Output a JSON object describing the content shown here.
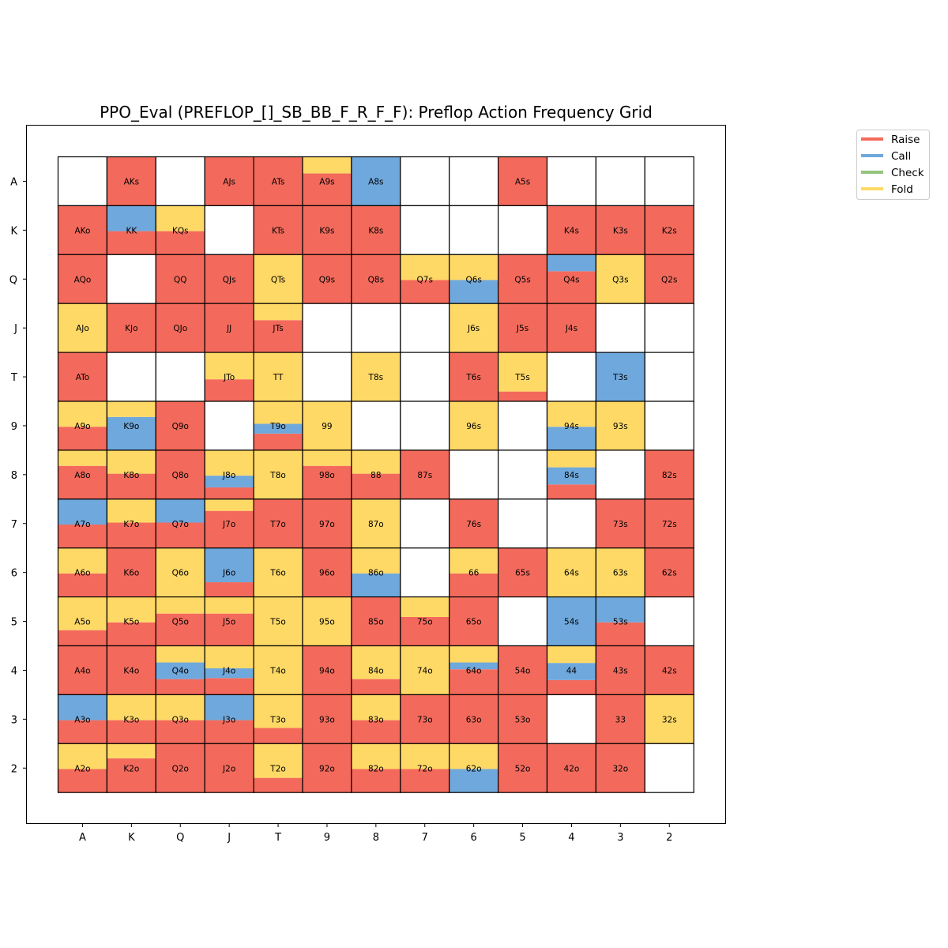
{
  "chart_data": {
    "type": "heatmap",
    "title": "PPO_Eval (PREFLOP_[]_SB_BB_F_R_F_F): Preflop Action Frequency Grid",
    "xlabel": "",
    "ylabel": "",
    "x_ticks": [
      "A",
      "K",
      "Q",
      "J",
      "T",
      "9",
      "8",
      "7",
      "6",
      "5",
      "4",
      "3",
      "2"
    ],
    "y_ticks": [
      "A",
      "K",
      "Q",
      "J",
      "T",
      "9",
      "8",
      "7",
      "6",
      "5",
      "4",
      "3",
      "2"
    ],
    "legend": {
      "placement": "upper right, outside axes",
      "entries": [
        {
          "label": "Raise",
          "color": "#F36A5C"
        },
        {
          "label": "Call",
          "color": "#6FA8DC"
        },
        {
          "label": "Check",
          "color": "#93C47D"
        },
        {
          "label": "Fold",
          "color": "#FFD966"
        }
      ]
    },
    "stack_order_bottom_to_top": [
      "raise",
      "call",
      "check",
      "fold"
    ],
    "empty_cell_color": "#FFFFFF",
    "rows": [
      [
        null,
        {
          "label": "AKs",
          "raise": 1
        },
        null,
        {
          "label": "AJs",
          "raise": 1
        },
        {
          "label": "ATs",
          "raise": 1
        },
        {
          "label": "A9s",
          "raise": 0.66,
          "fold": 0.34
        },
        {
          "label": "A8s",
          "call": 1
        },
        null,
        null,
        {
          "label": "A5s",
          "raise": 1
        },
        null,
        null,
        null
      ],
      [
        {
          "label": "AKo",
          "raise": 1
        },
        {
          "label": "KK",
          "raise": 0.48,
          "call": 0.52
        },
        {
          "label": "KQs",
          "raise": 0.48,
          "fold": 0.52
        },
        null,
        {
          "label": "KTs",
          "raise": 1
        },
        {
          "label": "K9s",
          "raise": 1
        },
        {
          "label": "K8s",
          "raise": 1
        },
        null,
        null,
        null,
        {
          "label": "K4s",
          "raise": 1
        },
        {
          "label": "K3s",
          "raise": 1
        },
        {
          "label": "K2s",
          "raise": 1
        }
      ],
      [
        {
          "label": "AQo",
          "raise": 1
        },
        null,
        {
          "label": "QQ",
          "raise": 1
        },
        {
          "label": "QJs",
          "raise": 1
        },
        {
          "label": "QTs",
          "fold": 1
        },
        {
          "label": "Q9s",
          "raise": 1
        },
        {
          "label": "Q8s",
          "raise": 1
        },
        {
          "label": "Q7s",
          "raise": 0.48,
          "fold": 0.52
        },
        {
          "label": "Q6s",
          "call": 0.48,
          "fold": 0.52
        },
        {
          "label": "Q5s",
          "raise": 1
        },
        {
          "label": "Q4s",
          "raise": 0.66,
          "call": 0.34
        },
        {
          "label": "Q3s",
          "fold": 1
        },
        {
          "label": "Q2s",
          "raise": 1
        }
      ],
      [
        {
          "label": "AJo",
          "fold": 1
        },
        {
          "label": "KJo",
          "raise": 1
        },
        {
          "label": "QJo",
          "raise": 1
        },
        {
          "label": "JJ",
          "raise": 1
        },
        {
          "label": "JTs",
          "raise": 0.66,
          "fold": 0.34
        },
        null,
        null,
        null,
        {
          "label": "J6s",
          "fold": 1
        },
        {
          "label": "J5s",
          "raise": 1
        },
        {
          "label": "J4s",
          "raise": 1
        },
        null,
        null
      ],
      [
        {
          "label": "ATo",
          "raise": 1
        },
        null,
        null,
        {
          "label": "JTo",
          "raise": 0.45,
          "fold": 0.55
        },
        {
          "label": "TT",
          "fold": 1
        },
        null,
        {
          "label": "T8s",
          "fold": 1
        },
        null,
        {
          "label": "T6s",
          "raise": 1
        },
        {
          "label": "T5s",
          "raise": 0.2,
          "fold": 0.8
        },
        null,
        {
          "label": "T3s",
          "call": 1
        },
        null
      ],
      [
        {
          "label": "A9o",
          "raise": 0.48,
          "fold": 0.52
        },
        {
          "label": "K9o",
          "call": 0.68,
          "fold": 0.32
        },
        {
          "label": "Q9o",
          "raise": 1
        },
        null,
        {
          "label": "T9o",
          "raise": 0.34,
          "call": 0.2,
          "fold": 0.46
        },
        {
          "label": "99",
          "fold": 1
        },
        null,
        null,
        {
          "label": "96s",
          "fold": 1
        },
        null,
        {
          "label": "94s",
          "call": 0.48,
          "fold": 0.52
        },
        {
          "label": "93s",
          "fold": 1
        },
        null
      ],
      [
        {
          "label": "A8o",
          "raise": 0.68,
          "fold": 0.32
        },
        {
          "label": "K8o",
          "raise": 0.52,
          "fold": 0.48
        },
        {
          "label": "Q8o",
          "raise": 1
        },
        {
          "label": "J8o",
          "raise": 0.24,
          "call": 0.24,
          "fold": 0.52
        },
        {
          "label": "T8o",
          "fold": 1
        },
        {
          "label": "98o",
          "raise": 0.68,
          "fold": 0.32
        },
        {
          "label": "88",
          "raise": 0.52,
          "fold": 0.48
        },
        {
          "label": "87s",
          "raise": 1
        },
        null,
        null,
        {
          "label": "84s",
          "raise": 0.3,
          "call": 0.35,
          "fold": 0.35
        },
        null,
        {
          "label": "82s",
          "raise": 1
        }
      ],
      [
        {
          "label": "A7o",
          "raise": 0.48,
          "call": 0.52
        },
        {
          "label": "K7o",
          "raise": 0.52,
          "fold": 0.48
        },
        {
          "label": "Q7o",
          "raise": 0.52,
          "call": 0.48
        },
        {
          "label": "J7o",
          "raise": 0.76,
          "fold": 0.24
        },
        {
          "label": "T7o",
          "raise": 1
        },
        {
          "label": "97o",
          "raise": 1
        },
        {
          "label": "87o",
          "fold": 1
        },
        null,
        {
          "label": "76s",
          "raise": 1
        },
        null,
        null,
        {
          "label": "73s",
          "raise": 1
        },
        {
          "label": "72s",
          "raise": 1
        }
      ],
      [
        {
          "label": "A6o",
          "raise": 0.48,
          "fold": 0.52
        },
        {
          "label": "K6o",
          "raise": 1
        },
        {
          "label": "Q6o",
          "fold": 1
        },
        {
          "label": "J6o",
          "raise": 0.3,
          "call": 0.7
        },
        {
          "label": "T6o",
          "fold": 1
        },
        {
          "label": "96o",
          "raise": 1
        },
        {
          "label": "86o",
          "call": 0.48,
          "fold": 0.52
        },
        null,
        {
          "label": "66",
          "raise": 0.48,
          "fold": 0.52
        },
        {
          "label": "65s",
          "raise": 1
        },
        {
          "label": "64s",
          "fold": 1
        },
        {
          "label": "63s",
          "fold": 1
        },
        {
          "label": "62s",
          "raise": 1
        }
      ],
      [
        {
          "label": "A5o",
          "raise": 0.32,
          "fold": 0.68
        },
        {
          "label": "K5o",
          "raise": 0.48,
          "fold": 0.52
        },
        {
          "label": "Q5o",
          "raise": 0.66,
          "fold": 0.34
        },
        {
          "label": "J5o",
          "raise": 0.66,
          "fold": 0.34
        },
        {
          "label": "T5o",
          "fold": 1
        },
        {
          "label": "95o",
          "fold": 1
        },
        {
          "label": "85o",
          "raise": 1
        },
        {
          "label": "75o",
          "raise": 0.59,
          "fold": 0.41
        },
        {
          "label": "65o",
          "raise": 1
        },
        null,
        {
          "label": "54s",
          "call": 1
        },
        {
          "label": "53s",
          "raise": 0.48,
          "call": 0.52
        },
        null
      ],
      [
        {
          "label": "A4o",
          "raise": 1
        },
        {
          "label": "K4o",
          "raise": 1
        },
        {
          "label": "Q4o",
          "raise": 0.32,
          "call": 0.34,
          "fold": 0.34
        },
        {
          "label": "J4o",
          "raise": 0.34,
          "call": 0.2,
          "fold": 0.46
        },
        {
          "label": "T4o",
          "fold": 1
        },
        {
          "label": "94o",
          "raise": 1
        },
        {
          "label": "84o",
          "raise": 0.32,
          "fold": 0.68
        },
        {
          "label": "74o",
          "fold": 1
        },
        {
          "label": "64o",
          "raise": 0.52,
          "call": 0.14,
          "fold": 0.34
        },
        {
          "label": "54o",
          "raise": 1
        },
        {
          "label": "44",
          "raise": 0.3,
          "call": 0.35,
          "fold": 0.35
        },
        {
          "label": "43s",
          "raise": 1
        },
        {
          "label": "42s",
          "raise": 1
        }
      ],
      [
        {
          "label": "A3o",
          "raise": 0.48,
          "call": 0.52
        },
        {
          "label": "K3o",
          "raise": 0.48,
          "fold": 0.52
        },
        {
          "label": "Q3o",
          "raise": 0.48,
          "fold": 0.52
        },
        {
          "label": "J3o",
          "raise": 0.48,
          "call": 0.52
        },
        {
          "label": "T3o",
          "raise": 0.32,
          "fold": 0.68
        },
        {
          "label": "93o",
          "raise": 1
        },
        {
          "label": "83o",
          "raise": 0.48,
          "fold": 0.52
        },
        {
          "label": "73o",
          "raise": 1
        },
        {
          "label": "63o",
          "raise": 1
        },
        {
          "label": "53o",
          "raise": 1
        },
        null,
        {
          "label": "33",
          "raise": 1
        },
        {
          "label": "32s",
          "fold": 1
        }
      ],
      [
        {
          "label": "A2o",
          "raise": 0.48,
          "fold": 0.52
        },
        {
          "label": "K2o",
          "raise": 0.7,
          "fold": 0.3
        },
        {
          "label": "Q2o",
          "raise": 1
        },
        {
          "label": "J2o",
          "raise": 1
        },
        {
          "label": "T2o",
          "raise": 0.3,
          "fold": 0.7
        },
        {
          "label": "92o",
          "raise": 1
        },
        {
          "label": "82o",
          "raise": 0.48,
          "fold": 0.52
        },
        {
          "label": "72o",
          "raise": 0.48,
          "fold": 0.52
        },
        {
          "label": "62o",
          "call": 0.48,
          "fold": 0.52
        },
        {
          "label": "52o",
          "raise": 1
        },
        {
          "label": "42o",
          "raise": 1
        },
        {
          "label": "32o",
          "raise": 1
        },
        null
      ]
    ]
  }
}
